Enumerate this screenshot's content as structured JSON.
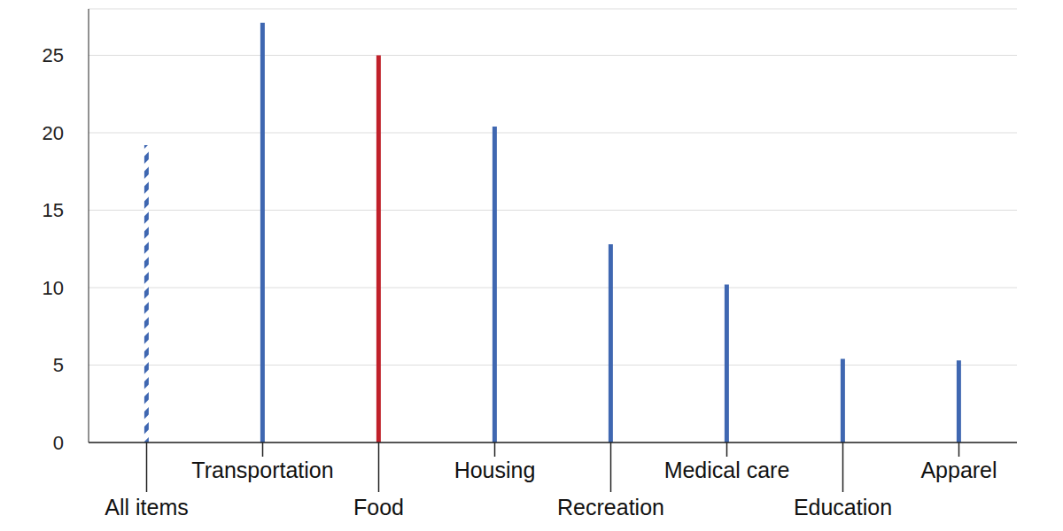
{
  "chart_data": {
    "type": "bar",
    "categories": [
      "All items",
      "Transportation",
      "Food",
      "Housing",
      "Recreation",
      "Medical care",
      "Education",
      "Apparel"
    ],
    "values": [
      19.2,
      27.1,
      25.0,
      20.4,
      12.8,
      10.2,
      5.4,
      5.3
    ],
    "colors": [
      "#3f67b1",
      "#3f67b1",
      "#c0202a",
      "#3f67b1",
      "#3f67b1",
      "#3f67b1",
      "#3f67b1",
      "#3f67b1"
    ],
    "ylim": [
      0,
      28
    ],
    "yticks": [
      0,
      5,
      10,
      15,
      20,
      25
    ],
    "grid": true
  }
}
